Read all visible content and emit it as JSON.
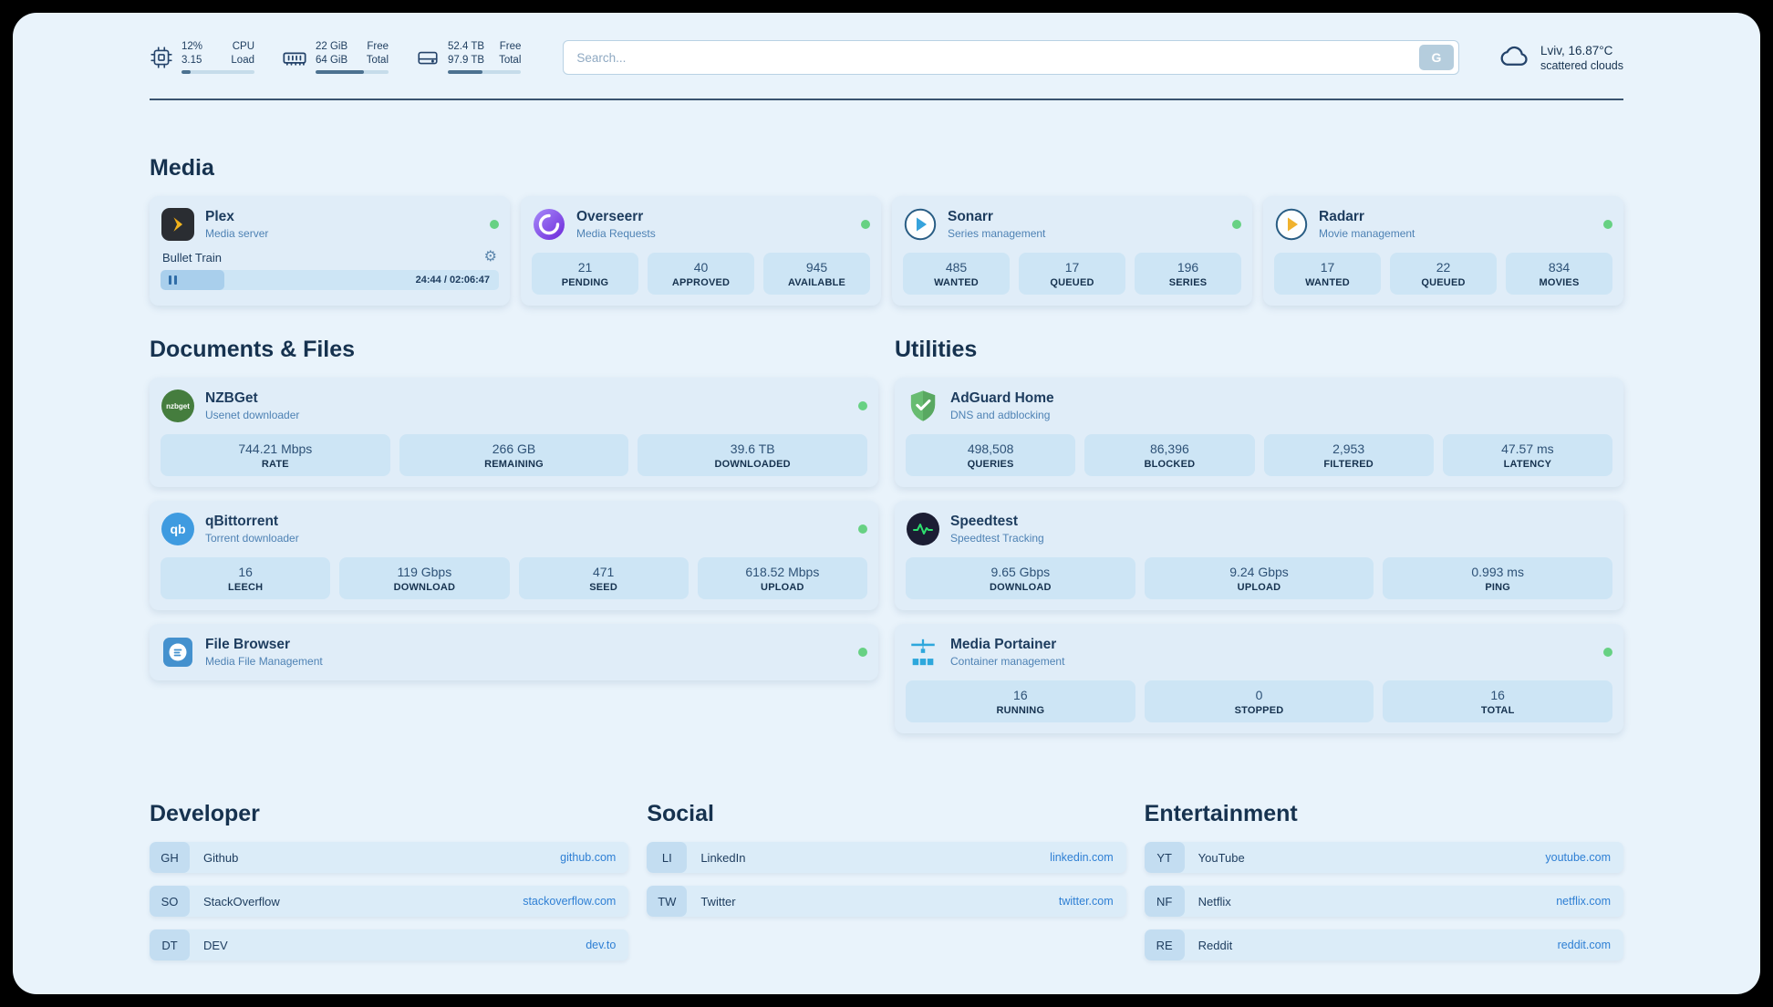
{
  "topbar": {
    "cpu": {
      "value_top": "12%",
      "value_bottom": "3.15",
      "label_top": "CPU",
      "label_bottom": "Load",
      "bar_percent": 12
    },
    "ram": {
      "value_top": "22 GiB",
      "value_bottom": "64 GiB",
      "label_top": "Free",
      "label_bottom": "Total",
      "bar_percent": 66
    },
    "disk": {
      "value_top": "52.4 TB",
      "value_bottom": "97.9 TB",
      "label_top": "Free",
      "label_bottom": "Total",
      "bar_percent": 47
    },
    "search": {
      "placeholder": "Search...",
      "button_label": "G"
    },
    "weather": {
      "location": "Lviv, 16.87°C",
      "condition": "scattered clouds"
    }
  },
  "sections": {
    "media": "Media",
    "documents": "Documents & Files",
    "utilities": "Utilities",
    "developer": "Developer",
    "social": "Social",
    "entertainment": "Entertainment"
  },
  "apps": {
    "plex": {
      "name": "Plex",
      "subtitle": "Media server",
      "now_playing": "Bullet Train",
      "time": "24:44 / 02:06:47",
      "progress_percent": 19
    },
    "overseerr": {
      "name": "Overseerr",
      "subtitle": "Media Requests",
      "stats": [
        {
          "value": "21",
          "label": "PENDING"
        },
        {
          "value": "40",
          "label": "APPROVED"
        },
        {
          "value": "945",
          "label": "AVAILABLE"
        }
      ]
    },
    "sonarr": {
      "name": "Sonarr",
      "subtitle": "Series management",
      "stats": [
        {
          "value": "485",
          "label": "WANTED"
        },
        {
          "value": "17",
          "label": "QUEUED"
        },
        {
          "value": "196",
          "label": "SERIES"
        }
      ]
    },
    "radarr": {
      "name": "Radarr",
      "subtitle": "Movie management",
      "stats": [
        {
          "value": "17",
          "label": "WANTED"
        },
        {
          "value": "22",
          "label": "QUEUED"
        },
        {
          "value": "834",
          "label": "MOVIES"
        }
      ]
    },
    "nzbget": {
      "name": "NZBGet",
      "subtitle": "Usenet downloader",
      "icon_text": "nzbget",
      "stats": [
        {
          "value": "744.21 Mbps",
          "label": "RATE"
        },
        {
          "value": "266 GB",
          "label": "REMAINING"
        },
        {
          "value": "39.6 TB",
          "label": "DOWNLOADED"
        }
      ]
    },
    "qbittorrent": {
      "name": "qBittorrent",
      "subtitle": "Torrent downloader",
      "icon_text": "qb",
      "stats": [
        {
          "value": "16",
          "label": "LEECH"
        },
        {
          "value": "119 Gbps",
          "label": "DOWNLOAD"
        },
        {
          "value": "471",
          "label": "SEED"
        },
        {
          "value": "618.52 Mbps",
          "label": "UPLOAD"
        }
      ]
    },
    "filebrowser": {
      "name": "File Browser",
      "subtitle": "Media File Management"
    },
    "adguard": {
      "name": "AdGuard Home",
      "subtitle": "DNS and adblocking",
      "stats": [
        {
          "value": "498,508",
          "label": "QUERIES"
        },
        {
          "value": "86,396",
          "label": "BLOCKED"
        },
        {
          "value": "2,953",
          "label": "FILTERED"
        },
        {
          "value": "47.57 ms",
          "label": "LATENCY"
        }
      ]
    },
    "speedtest": {
      "name": "Speedtest",
      "subtitle": "Speedtest Tracking",
      "stats": [
        {
          "value": "9.65 Gbps",
          "label": "DOWNLOAD"
        },
        {
          "value": "9.24 Gbps",
          "label": "UPLOAD"
        },
        {
          "value": "0.993 ms",
          "label": "PING"
        }
      ]
    },
    "portainer": {
      "name": "Media Portainer",
      "subtitle": "Container management",
      "stats": [
        {
          "value": "16",
          "label": "RUNNING"
        },
        {
          "value": "0",
          "label": "STOPPED"
        },
        {
          "value": "16",
          "label": "TOTAL"
        }
      ]
    }
  },
  "bookmarks": {
    "developer": [
      {
        "abbr": "GH",
        "name": "Github",
        "url": "github.com"
      },
      {
        "abbr": "SO",
        "name": "StackOverflow",
        "url": "stackoverflow.com"
      },
      {
        "abbr": "DT",
        "name": "DEV",
        "url": "dev.to"
      }
    ],
    "social": [
      {
        "abbr": "LI",
        "name": "LinkedIn",
        "url": "linkedin.com"
      },
      {
        "abbr": "TW",
        "name": "Twitter",
        "url": "twitter.com"
      }
    ],
    "entertainment": [
      {
        "abbr": "YT",
        "name": "YouTube",
        "url": "youtube.com"
      },
      {
        "abbr": "NF",
        "name": "Netflix",
        "url": "netflix.com"
      },
      {
        "abbr": "RE",
        "name": "Reddit",
        "url": "reddit.com"
      }
    ]
  }
}
